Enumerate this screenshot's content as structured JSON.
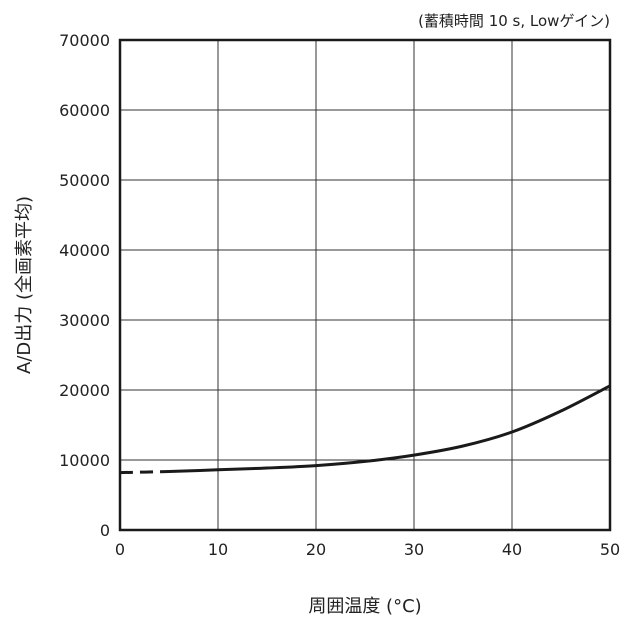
{
  "chart_data": {
    "type": "line",
    "title": "",
    "annotation": "(蓄積時間 10 s, Lowゲイン)",
    "xlabel": "周囲温度 (°C)",
    "ylabel": "A/D出力 (全画素平均)",
    "xlim": [
      0,
      50
    ],
    "ylim": [
      0,
      70000
    ],
    "xticks": [
      "0",
      "10",
      "20",
      "30",
      "40",
      "50"
    ],
    "yticks": [
      "0",
      "10000",
      "20000",
      "30000",
      "40000",
      "50000",
      "60000",
      "70000"
    ],
    "grid": true,
    "legend": "none",
    "line_color": "#1a1a1a",
    "series": [
      {
        "name": "",
        "dashed_segment": {
          "x": [
            0,
            5
          ],
          "y": [
            8200,
            8350
          ]
        },
        "solid_segment": {
          "x": [
            5,
            10,
            15,
            20,
            25,
            30,
            35,
            40,
            45,
            50
          ],
          "y": [
            8350,
            8600,
            8850,
            9200,
            9800,
            10700,
            12000,
            14000,
            17000,
            20600
          ]
        }
      }
    ]
  }
}
